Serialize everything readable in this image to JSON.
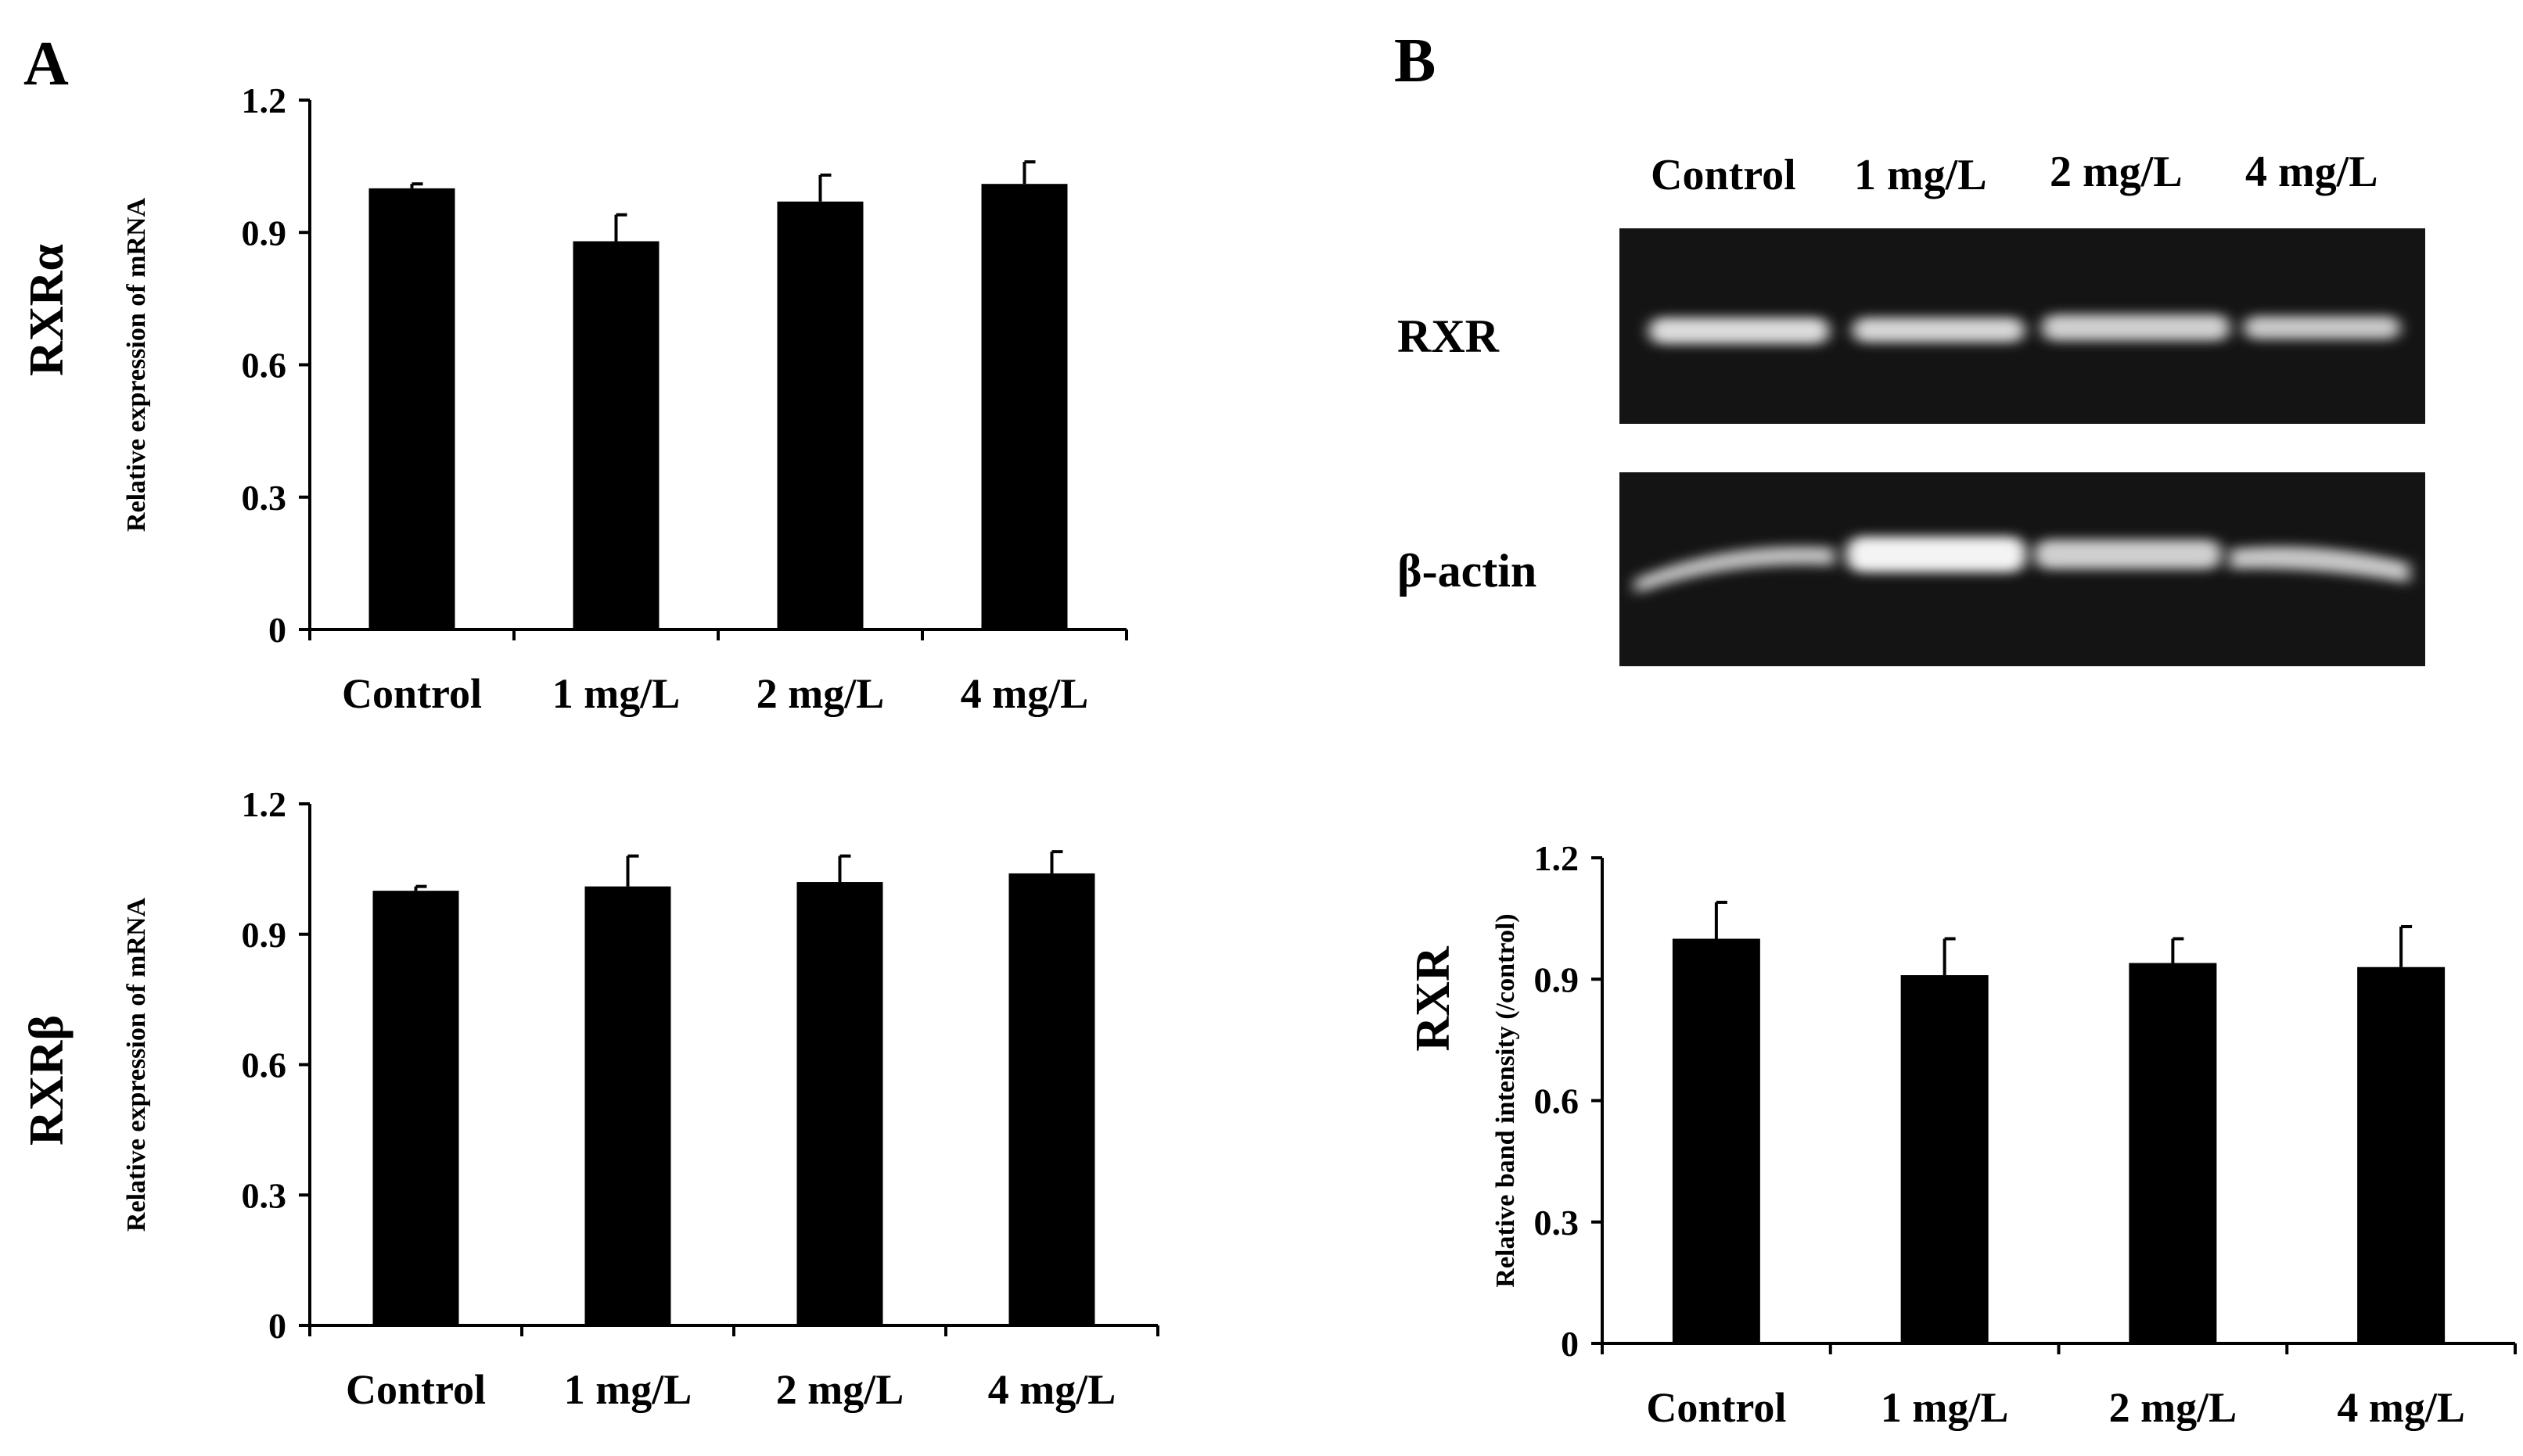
{
  "panels": {
    "a_letter": "A",
    "b_letter": "B"
  },
  "blot": {
    "lanes": [
      "Control",
      "1 mg/L",
      "2 mg/L",
      "4 mg/L"
    ],
    "rows": [
      "RXR",
      "β-actin"
    ],
    "band_color": "#e8e8e8",
    "background_color": "#141414"
  },
  "chart_data": [
    {
      "type": "bar",
      "gene_label": "RXRα",
      "ylabel": "Relative expression of mRNA",
      "categories": [
        "Control",
        "1 mg/L",
        "2 mg/L",
        "4 mg/L"
      ],
      "values": [
        1.0,
        0.88,
        0.97,
        1.01
      ],
      "errors": [
        0.01,
        0.06,
        0.06,
        0.05
      ],
      "ylim": [
        0,
        1.2
      ],
      "yticks": [
        "0",
        "0.3",
        "0.6",
        "0.9",
        "1.2"
      ],
      "grid": false,
      "bar_color": "#000000"
    },
    {
      "type": "bar",
      "gene_label": "RXRβ",
      "ylabel": "Relative expression of mRNA",
      "categories": [
        "Control",
        "1 mg/L",
        "2 mg/L",
        "4 mg/L"
      ],
      "values": [
        1.0,
        1.01,
        1.02,
        1.04
      ],
      "errors": [
        0.01,
        0.07,
        0.06,
        0.05
      ],
      "ylim": [
        0,
        1.2
      ],
      "yticks": [
        "0",
        "0.3",
        "0.6",
        "0.9",
        "1.2"
      ],
      "grid": false,
      "bar_color": "#000000"
    },
    {
      "type": "bar",
      "gene_label": "RXR",
      "ylabel": "Relative band intensity (/control)",
      "categories": [
        "Control",
        "1 mg/L",
        "2 mg/L",
        "4 mg/L"
      ],
      "values": [
        1.0,
        0.91,
        0.94,
        0.93
      ],
      "errors": [
        0.09,
        0.09,
        0.06,
        0.1
      ],
      "ylim": [
        0,
        1.2
      ],
      "yticks": [
        "0",
        "0.3",
        "0.6",
        "0.9",
        "1.2"
      ],
      "grid": false,
      "bar_color": "#000000"
    }
  ]
}
